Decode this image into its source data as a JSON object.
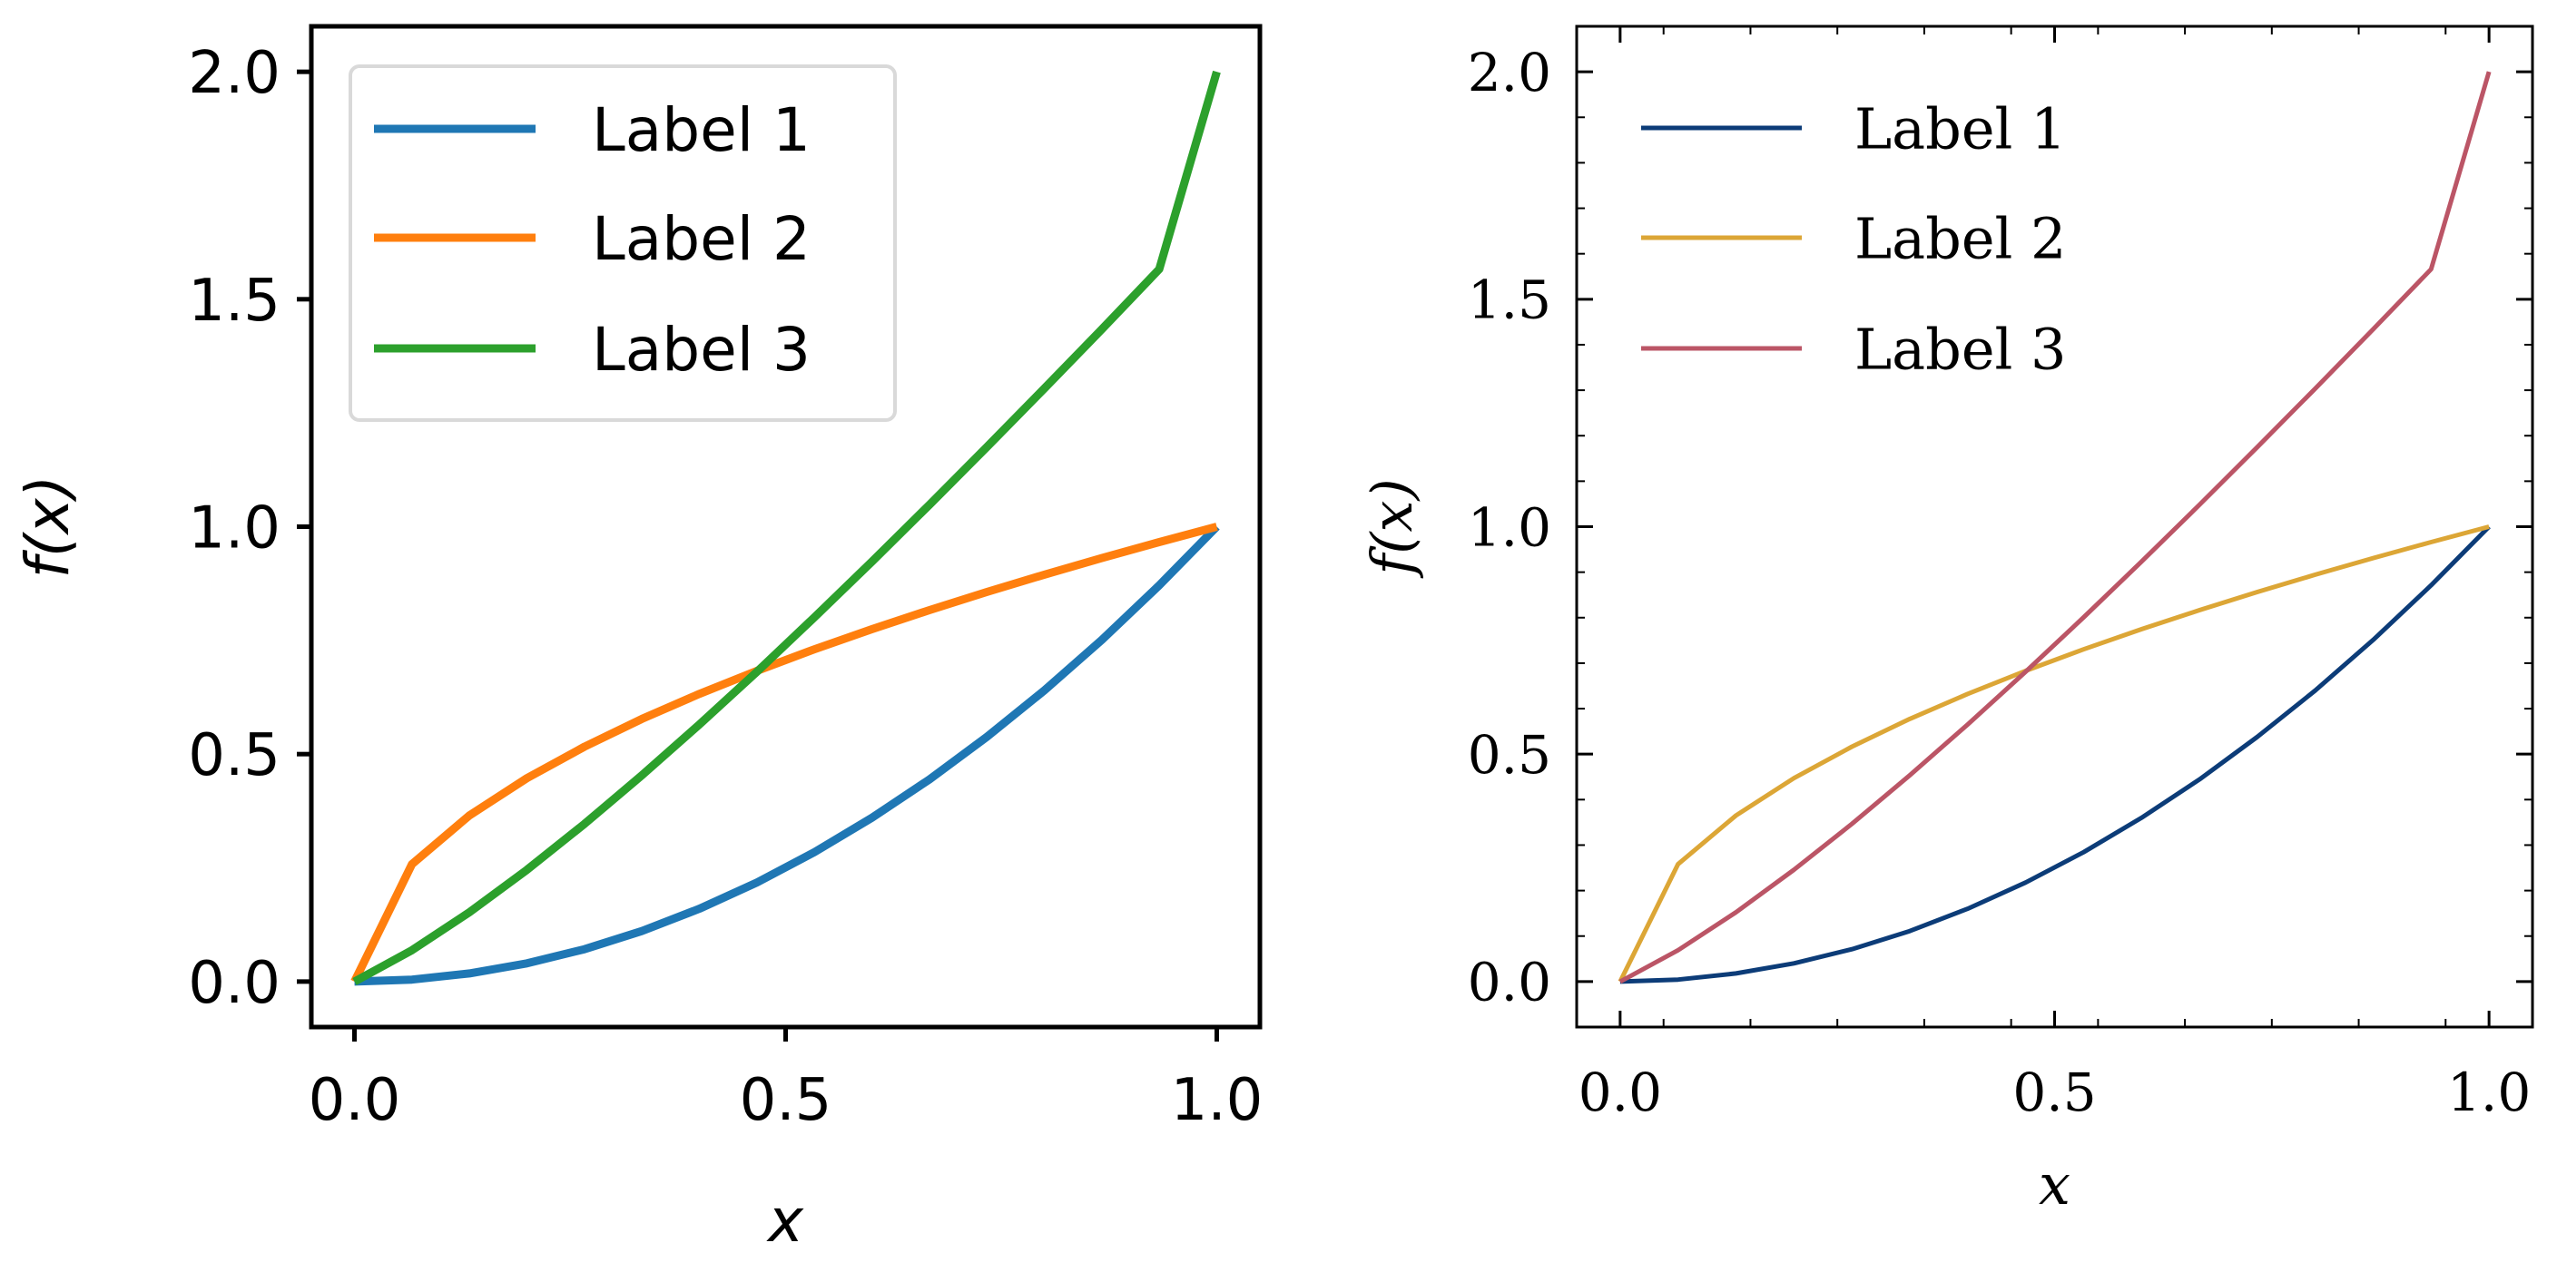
{
  "chart_data": [
    {
      "type": "line",
      "style": "default",
      "xlabel": "x",
      "ylabel": "f(x)",
      "xlim": [
        -0.05,
        1.05
      ],
      "ylim": [
        -0.1,
        2.1
      ],
      "xticks": [
        0.0,
        0.5,
        1.0
      ],
      "xtick_labels": [
        "0.0",
        "0.5",
        "1.0"
      ],
      "yticks": [
        0.0,
        0.5,
        1.0,
        1.5,
        2.0
      ],
      "ytick_labels": [
        "0.0",
        "0.5",
        "1.0",
        "1.5",
        "2.0"
      ],
      "minor_ticks": false,
      "grid": false,
      "legend_position": "top-left",
      "legend_frame": true,
      "x": [
        0,
        0.0667,
        0.1333,
        0.2,
        0.2667,
        0.3333,
        0.4,
        0.4667,
        0.5333,
        0.6,
        0.6667,
        0.7333,
        0.8,
        0.8667,
        0.9333,
        1.0
      ],
      "series": [
        {
          "name": "Label 1",
          "color": "#1f77b4",
          "values": [
            0,
            0.0044,
            0.0178,
            0.04,
            0.0711,
            0.1111,
            0.16,
            0.2178,
            0.2844,
            0.36,
            0.4444,
            0.5378,
            0.64,
            0.7511,
            0.8711,
            1.0
          ]
        },
        {
          "name": "Label 2",
          "color": "#ff7f0e",
          "values": [
            0,
            0.2582,
            0.3651,
            0.4472,
            0.5164,
            0.5774,
            0.6325,
            0.6831,
            0.7303,
            0.7746,
            0.8165,
            0.8563,
            0.8944,
            0.9309,
            0.9661,
            1.0
          ]
        },
        {
          "name": "Label 3",
          "color": "#2ca02c",
          "values": [
            0,
            0.0689,
            0.1523,
            0.2457,
            0.3465,
            0.4533,
            0.5651,
            0.681,
            0.8005,
            0.9231,
            1.048,
            1.175,
            1.3038,
            1.434,
            1.566,
            2.0
          ]
        }
      ]
    },
    {
      "type": "line",
      "style": "science",
      "xlabel": "x",
      "ylabel": "f(x)",
      "xlim": [
        -0.05,
        1.05
      ],
      "ylim": [
        -0.1,
        2.1
      ],
      "xticks": [
        0.0,
        0.5,
        1.0
      ],
      "xtick_labels": [
        "0.0",
        "0.5",
        "1.0"
      ],
      "yticks": [
        0.0,
        0.5,
        1.0,
        1.5,
        2.0
      ],
      "ytick_labels": [
        "0.0",
        "0.5",
        "1.0",
        "1.5",
        "2.0"
      ],
      "minor_ticks": true,
      "ticks_on_all_sides": true,
      "grid": false,
      "legend_position": "top-left",
      "legend_frame": false,
      "x": [
        0,
        0.0667,
        0.1333,
        0.2,
        0.2667,
        0.3333,
        0.4,
        0.4667,
        0.5333,
        0.6,
        0.6667,
        0.7333,
        0.8,
        0.8667,
        0.9333,
        1.0
      ],
      "series": [
        {
          "name": "Label 1",
          "color": "#0c3c78",
          "values": [
            0,
            0.0044,
            0.0178,
            0.04,
            0.0711,
            0.1111,
            0.16,
            0.2178,
            0.2844,
            0.36,
            0.4444,
            0.5378,
            0.64,
            0.7511,
            0.8711,
            1.0
          ]
        },
        {
          "name": "Label 2",
          "color": "#dca636",
          "values": [
            0,
            0.2582,
            0.3651,
            0.4472,
            0.5164,
            0.5774,
            0.6325,
            0.6831,
            0.7303,
            0.7746,
            0.8165,
            0.8563,
            0.8944,
            0.9309,
            0.9661,
            1.0
          ]
        },
        {
          "name": "Label 3",
          "color": "#bb5566",
          "values": [
            0,
            0.0689,
            0.1523,
            0.2457,
            0.3465,
            0.4533,
            0.5651,
            0.681,
            0.8005,
            0.9231,
            1.048,
            1.175,
            1.3038,
            1.434,
            1.566,
            2.0
          ]
        }
      ]
    }
  ]
}
